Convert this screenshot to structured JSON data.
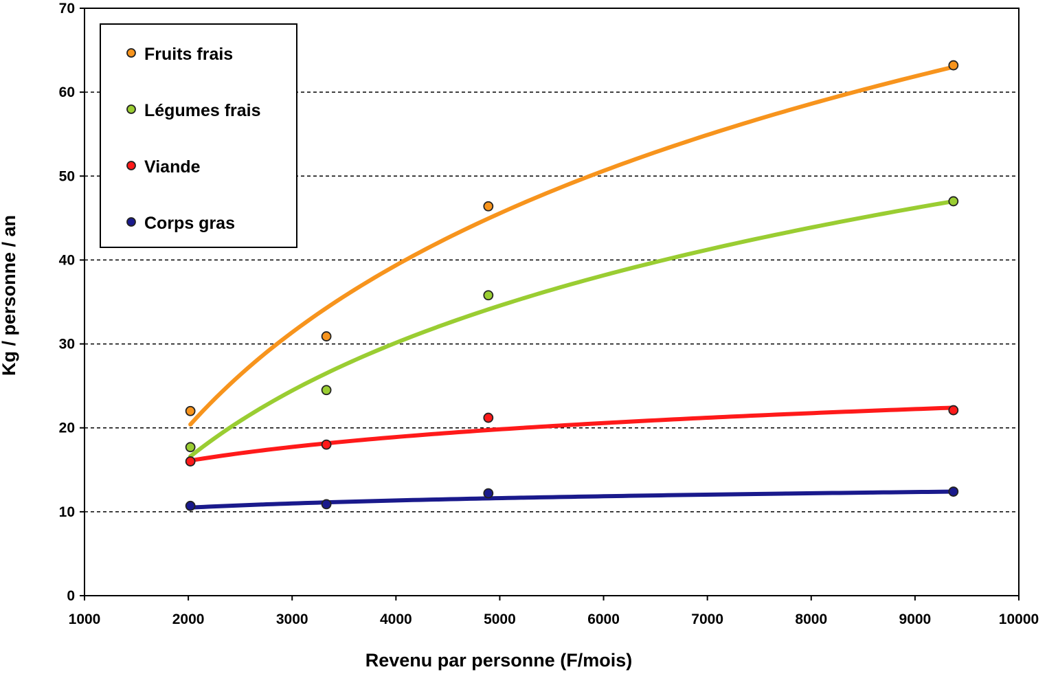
{
  "chart_data": {
    "type": "scatter",
    "title": "",
    "xlabel": "Revenu par personne (F/mois)",
    "ylabel": "Kg / personne / an",
    "xlim": [
      1000,
      10000
    ],
    "ylim": [
      0,
      70
    ],
    "xticks": [
      1000,
      2000,
      3000,
      4000,
      5000,
      6000,
      7000,
      8000,
      9000,
      10000
    ],
    "yticks": [
      0,
      10,
      20,
      30,
      40,
      50,
      60,
      70
    ],
    "grid": "horizontal dashed",
    "legend_position": "top-left",
    "trendline": "logarithmic",
    "series": [
      {
        "name": "Fruits frais",
        "color": "#F7941D",
        "x": [
          2020,
          3330,
          4890,
          9370
        ],
        "y": [
          22.0,
          30.9,
          46.4,
          63.2
        ],
        "trend": {
          "x_start": 2020,
          "x_end": 9370,
          "y_start": 20.4,
          "y_end": 63.0
        }
      },
      {
        "name": "Légumes frais",
        "color": "#9ACD32",
        "x": [
          2020,
          3330,
          4890,
          9370
        ],
        "y": [
          17.7,
          24.5,
          35.8,
          47.0
        ],
        "trend": {
          "x_start": 2020,
          "x_end": 9370,
          "y_start": 16.6,
          "y_end": 47.0
        }
      },
      {
        "name": "Viande",
        "color": "#FF1A1A",
        "x": [
          2020,
          3330,
          4890,
          9370
        ],
        "y": [
          16.0,
          18.0,
          21.2,
          22.1
        ],
        "trend": {
          "x_start": 2020,
          "x_end": 9370,
          "y_start": 16.1,
          "y_end": 22.4
        }
      },
      {
        "name": "Corps gras",
        "color": "#1A1A8C",
        "x": [
          2020,
          3330,
          4890,
          9370
        ],
        "y": [
          10.7,
          10.9,
          12.2,
          12.4
        ],
        "trend": {
          "x_start": 2020,
          "x_end": 9370,
          "y_start": 10.5,
          "y_end": 12.4
        }
      }
    ]
  }
}
